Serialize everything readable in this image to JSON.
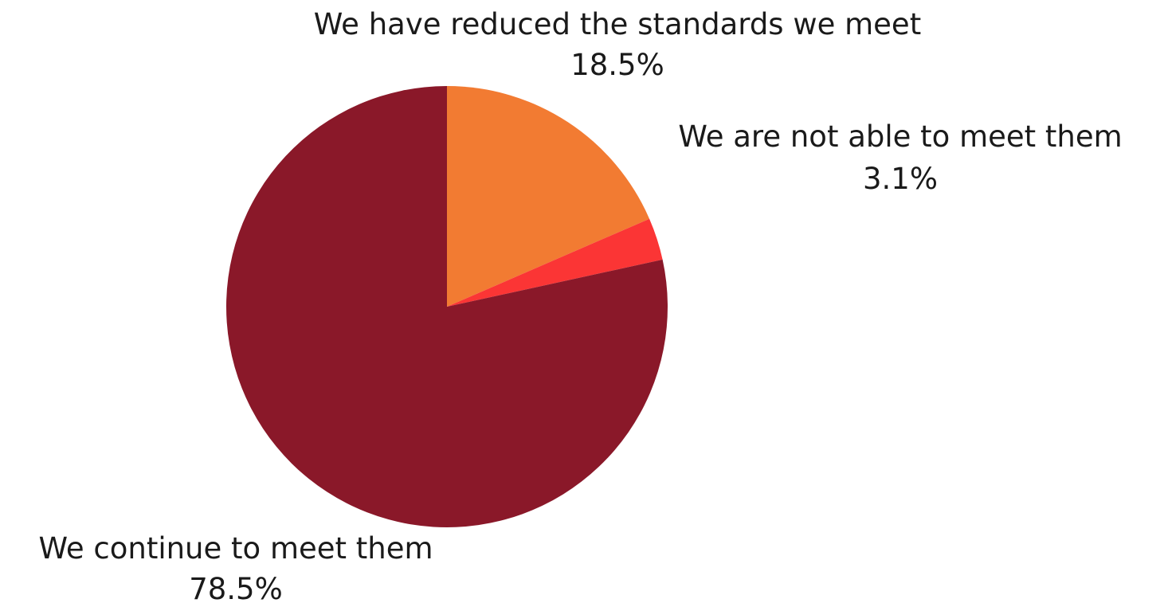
{
  "chart_data": {
    "type": "pie",
    "slices": [
      {
        "label": "We have reduced the standards we meet",
        "value": 18.5,
        "value_label": "18.5%",
        "color": "#f27b32"
      },
      {
        "label": "We are not able to meet them",
        "value": 3.1,
        "value_label": "3.1%",
        "color": "#fb3535"
      },
      {
        "label": "We continue to meet them",
        "value": 78.5,
        "value_label": "78.5%",
        "color": "#8a1829"
      }
    ],
    "start_angle_deg": 0,
    "direction": "clockwise",
    "legend": "none"
  }
}
